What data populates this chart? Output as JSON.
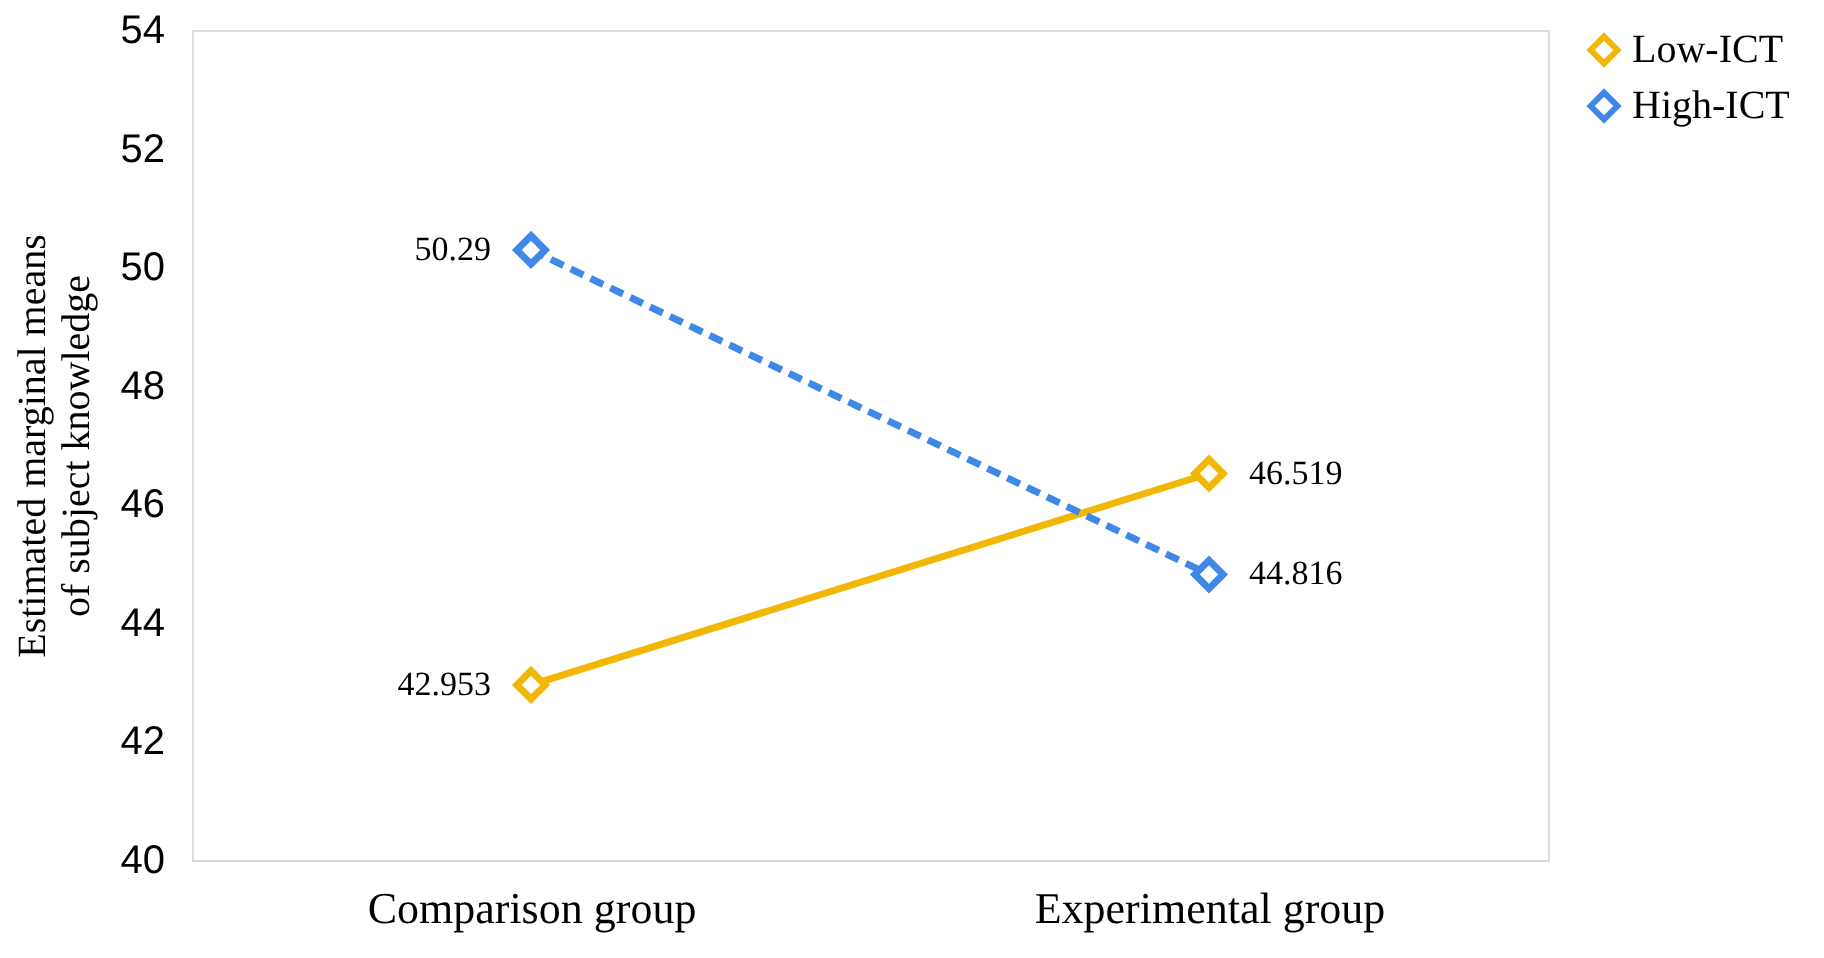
{
  "chart_data": {
    "type": "line",
    "ylabel": "Estimated marginal means of subject knowledge",
    "categories": [
      "Comparison group",
      "Experimental group"
    ],
    "series": [
      {
        "name": "Low-ICT",
        "color": "#f2b705",
        "values": [
          42.953,
          46.519
        ],
        "line_style": "solid"
      },
      {
        "name": "High-ICT",
        "color": "#3f88e8",
        "values": [
          50.29,
          44.816
        ],
        "line_style": "dashed"
      }
    ],
    "ylim": [
      40,
      54
    ],
    "yticks": [
      40,
      42,
      44,
      46,
      48,
      50,
      52,
      54
    ],
    "grid": false,
    "legend": "right",
    "marker": "diamond",
    "data_labels": true
  }
}
